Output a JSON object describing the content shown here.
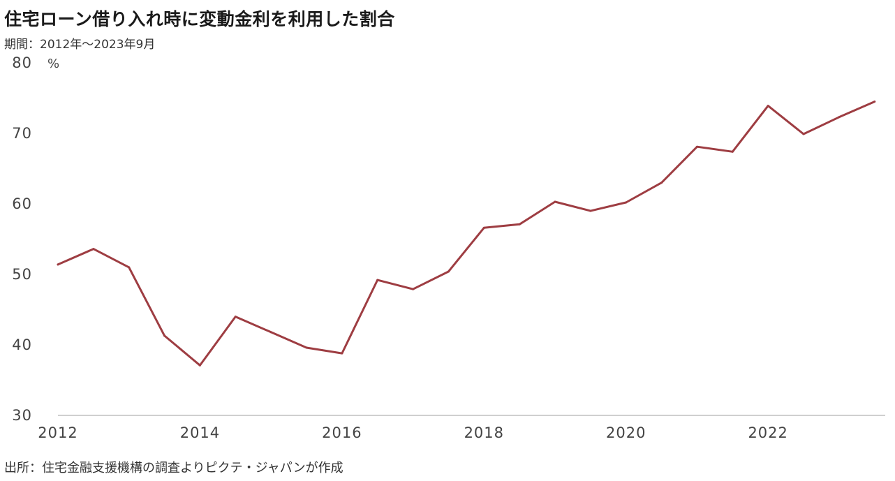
{
  "chart_data": {
    "type": "line",
    "title": "住宅ローン借り入れ時に変動金利を利用した割合",
    "subtitle": "期間：2012年～2023年9月",
    "source": "出所：住宅金融支援機構の調査よりピクテ・ジャパンが作成",
    "ylabel": "",
    "y_unit": "%",
    "xlabel": "",
    "ylim": [
      30,
      80
    ],
    "xlim": [
      2012,
      2023.65
    ],
    "y_ticks": [
      "80",
      "70",
      "60",
      "50",
      "40",
      "30"
    ],
    "x_ticks": [
      "2012",
      "2014",
      "2016",
      "2018",
      "2020",
      "2022"
    ],
    "grid": false,
    "line_color": "#9e3d42",
    "series": [
      {
        "x": [
          2012.0,
          2012.5,
          2013.0,
          2013.5,
          2014.0,
          2014.5,
          2015.0,
          2015.5,
          2016.0,
          2016.5,
          2017.0,
          2017.5,
          2018.0,
          2018.5,
          2019.0,
          2019.5,
          2020.0,
          2020.5,
          2021.0,
          2021.5,
          2022.0,
          2022.5,
          2023.0,
          2023.5
        ],
        "values": [
          51.4,
          53.6,
          51.0,
          41.3,
          37.1,
          44.0,
          41.8,
          39.6,
          38.8,
          49.2,
          47.9,
          50.4,
          56.6,
          57.1,
          60.3,
          59.0,
          60.2,
          63.0,
          68.1,
          67.4,
          73.9,
          69.9,
          72.3,
          74.5
        ]
      }
    ]
  }
}
